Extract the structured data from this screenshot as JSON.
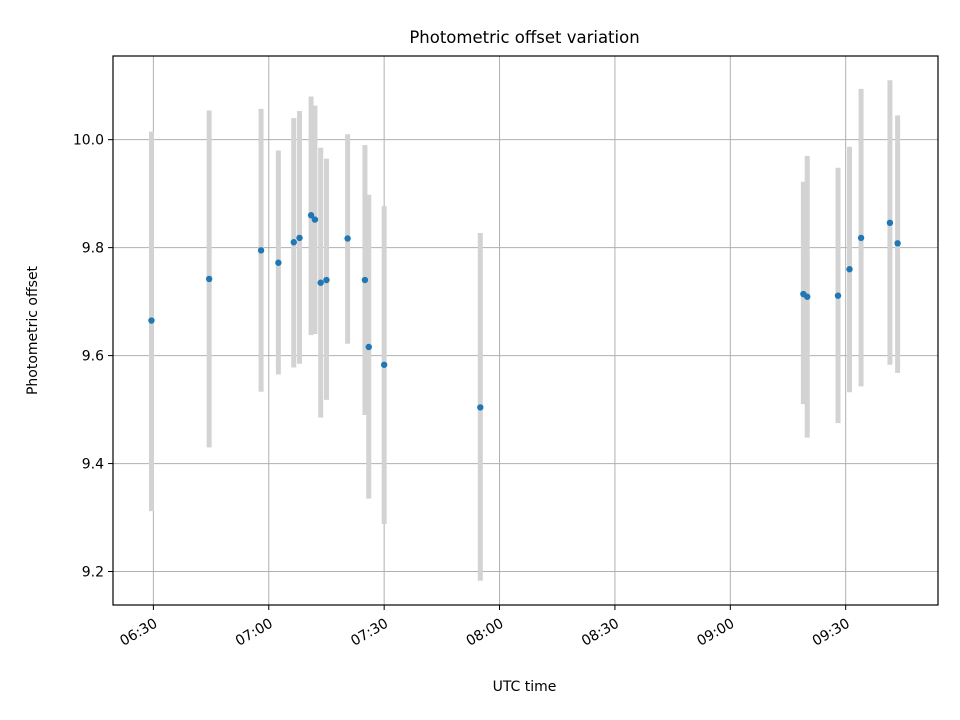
{
  "chart_data": {
    "type": "scatter",
    "title": "Photometric offset variation",
    "xlabel": "UTC time",
    "ylabel": "Photometric offset",
    "grid": true,
    "legend": "none",
    "colors": {
      "point": "#1f77b4",
      "errorbar": "#d3d3d3",
      "grid": "#b0b0b0"
    },
    "x_axis": {
      "unit": "HH:MM",
      "range": [
        "06:19:30",
        "09:54:00"
      ],
      "ticks": [
        "06:30",
        "07:00",
        "07:30",
        "08:00",
        "08:30",
        "09:00",
        "09:30"
      ]
    },
    "y_axis": {
      "range": [
        9.138,
        10.155
      ],
      "ticks": [
        9.2,
        9.4,
        9.6,
        9.8,
        10.0
      ],
      "tick_labels": [
        "9.2",
        "9.4",
        "9.6",
        "9.8",
        "10.0"
      ]
    },
    "points": [
      {
        "x": "06:29:30",
        "y": 9.665,
        "err_low": 9.312,
        "err_high": 10.015
      },
      {
        "x": "06:44:30",
        "y": 9.742,
        "err_low": 9.43,
        "err_high": 10.054
      },
      {
        "x": "06:58:00",
        "y": 9.795,
        "err_low": 9.533,
        "err_high": 10.057
      },
      {
        "x": "07:02:30",
        "y": 9.772,
        "err_low": 9.565,
        "err_high": 9.98
      },
      {
        "x": "07:06:30",
        "y": 9.81,
        "err_low": 9.578,
        "err_high": 10.04
      },
      {
        "x": "07:08:00",
        "y": 9.818,
        "err_low": 9.585,
        "err_high": 10.053
      },
      {
        "x": "07:11:00",
        "y": 9.86,
        "err_low": 9.638,
        "err_high": 10.08
      },
      {
        "x": "07:12:00",
        "y": 9.852,
        "err_low": 9.64,
        "err_high": 10.063
      },
      {
        "x": "07:13:30",
        "y": 9.735,
        "err_low": 9.485,
        "err_high": 9.985
      },
      {
        "x": "07:15:00",
        "y": 9.74,
        "err_low": 9.518,
        "err_high": 9.965
      },
      {
        "x": "07:20:30",
        "y": 9.817,
        "err_low": 9.622,
        "err_high": 10.01
      },
      {
        "x": "07:25:00",
        "y": 9.74,
        "err_low": 9.49,
        "err_high": 9.99
      },
      {
        "x": "07:26:00",
        "y": 9.616,
        "err_low": 9.335,
        "err_high": 9.898
      },
      {
        "x": "07:30:00",
        "y": 9.583,
        "err_low": 9.288,
        "err_high": 9.877
      },
      {
        "x": "07:55:00",
        "y": 9.504,
        "err_low": 9.183,
        "err_high": 9.827
      },
      {
        "x": "09:19:00",
        "y": 9.714,
        "err_low": 9.51,
        "err_high": 9.922
      },
      {
        "x": "09:20:00",
        "y": 9.709,
        "err_low": 9.448,
        "err_high": 9.97
      },
      {
        "x": "09:28:00",
        "y": 9.711,
        "err_low": 9.475,
        "err_high": 9.948
      },
      {
        "x": "09:31:00",
        "y": 9.76,
        "err_low": 9.532,
        "err_high": 9.987
      },
      {
        "x": "09:34:00",
        "y": 9.818,
        "err_low": 9.543,
        "err_high": 10.094
      },
      {
        "x": "09:41:30",
        "y": 9.846,
        "err_low": 9.583,
        "err_high": 10.11
      },
      {
        "x": "09:43:30",
        "y": 9.808,
        "err_low": 9.568,
        "err_high": 10.045
      }
    ]
  }
}
